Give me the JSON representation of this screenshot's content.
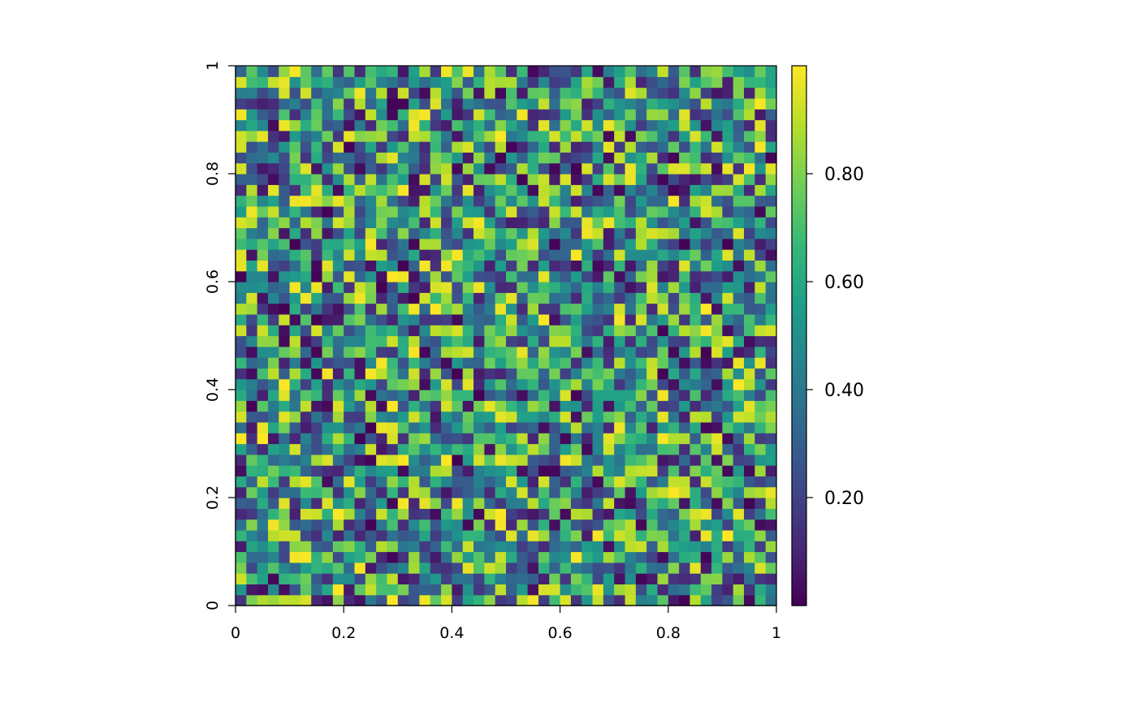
{
  "chart_data": {
    "type": "heatmap",
    "title": "",
    "xlabel": "",
    "ylabel": "",
    "nx": 50,
    "ny": 50,
    "xlim": [
      0,
      1
    ],
    "ylim": [
      0,
      1
    ],
    "x_ticks": [
      0,
      0.2,
      0.4,
      0.6,
      0.8,
      1
    ],
    "x_tick_labels": [
      "0",
      "0.2",
      "0.4",
      "0.6",
      "0.8",
      "1"
    ],
    "y_ticks": [
      0,
      0.2,
      0.4,
      0.6,
      0.8,
      1
    ],
    "y_tick_labels": [
      "0",
      "0.2",
      "0.4",
      "0.6",
      "0.8",
      "1"
    ],
    "colorbar": {
      "range": [
        0,
        1
      ],
      "ticks": [
        0.2,
        0.4,
        0.6,
        0.8
      ],
      "tick_labels": [
        "0.20",
        "0.40",
        "0.60",
        "0.80"
      ],
      "colormap": "viridis"
    },
    "value_generation": "uniform random values in [0, 1] on a 50 x 50 grid (cell values not individually readable)",
    "grid": false,
    "legend_position": "right"
  },
  "colors": {
    "viridis_stops": [
      "#440154",
      "#482878",
      "#3e4989",
      "#31688e",
      "#26828e",
      "#1f9e89",
      "#35b779",
      "#6ece58",
      "#b5de2b",
      "#fde725"
    ],
    "axis": "#000000",
    "background": "#ffffff"
  }
}
